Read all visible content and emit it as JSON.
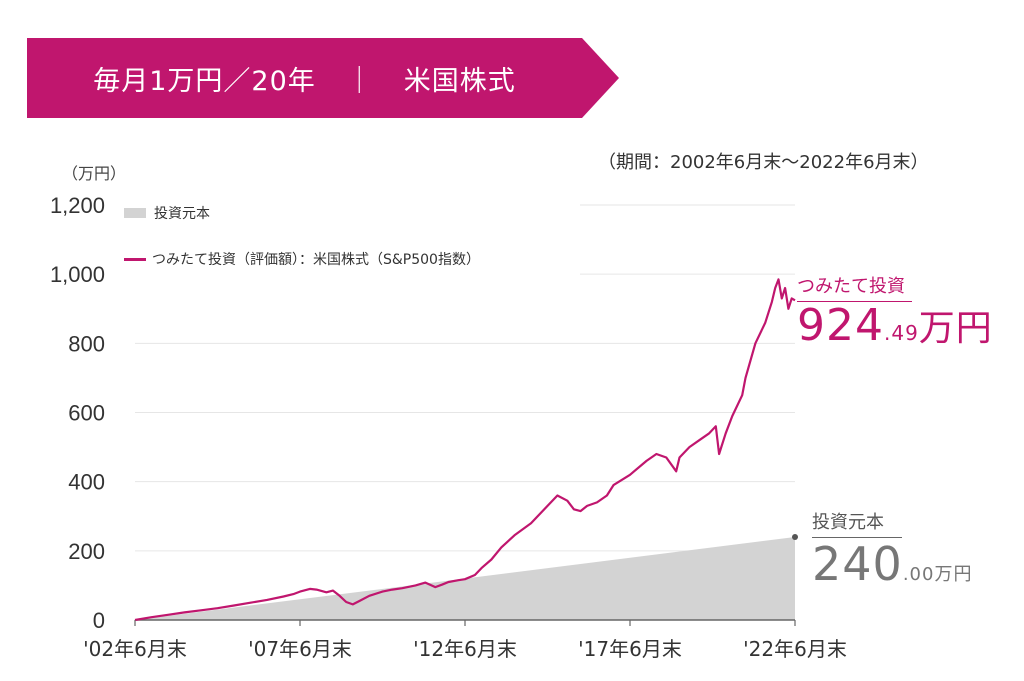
{
  "banner": {
    "left": "毎月1万円／20年",
    "separator": "｜",
    "right": "米国株式",
    "color": "#c0166e"
  },
  "period": "（期間：2002年6月末～2022年6月末）",
  "unit": "（万円）",
  "legend": {
    "principal": "投資元本",
    "tsumitate": "つみたて投資（評価額）：米国株式（S&P500指数）"
  },
  "annotations": {
    "tsumitate_label": "つみたて投資",
    "tsumitate_int": "924",
    "tsumitate_dec": ".49",
    "tsumitate_unit": "万円",
    "principal_label": "投資元本",
    "principal_int": "240",
    "principal_dec": ".00",
    "principal_unit": "万円"
  },
  "chart_data": {
    "type": "area",
    "ylim": [
      0,
      1200
    ],
    "y_ticks": [
      "0",
      "200",
      "400",
      "600",
      "800",
      "1,000",
      "1,200"
    ],
    "y_tick_values": [
      0,
      200,
      400,
      600,
      800,
      1000,
      1200
    ],
    "xlim": [
      2002.5,
      2022.5
    ],
    "x_ticks": [
      "'02年6月末",
      "'07年6月末",
      "'12年6月末",
      "'17年6月末",
      "'22年6月末"
    ],
    "x_tick_values": [
      2002.5,
      2007.5,
      2012.5,
      2017.5,
      2022.5
    ],
    "series": [
      {
        "name": "投資元本",
        "color": "#d3d3d3",
        "x": [
          2002.5,
          2022.5
        ],
        "y": [
          0,
          240
        ]
      },
      {
        "name": "つみたて投資（評価額）：米国株式（S&P500指数）",
        "color": "#c0166e",
        "x": [
          2002.5,
          2003.0,
          2003.5,
          2004.0,
          2004.5,
          2005.0,
          2005.5,
          2006.0,
          2006.5,
          2007.0,
          2007.3,
          2007.5,
          2007.8,
          2008.0,
          2008.3,
          2008.5,
          2008.7,
          2008.9,
          2009.1,
          2009.3,
          2009.6,
          2010.0,
          2010.3,
          2010.6,
          2011.0,
          2011.3,
          2011.6,
          2011.8,
          2012.0,
          2012.3,
          2012.5,
          2012.8,
          2013.0,
          2013.3,
          2013.6,
          2014.0,
          2014.5,
          2015.0,
          2015.3,
          2015.6,
          2015.8,
          2016.0,
          2016.2,
          2016.5,
          2016.8,
          2017.0,
          2017.5,
          2018.0,
          2018.3,
          2018.6,
          2018.9,
          2019.0,
          2019.3,
          2019.6,
          2019.9,
          2020.1,
          2020.2,
          2020.4,
          2020.6,
          2020.9,
          2021.0,
          2021.3,
          2021.6,
          2021.8,
          2021.9,
          2022.0,
          2022.1,
          2022.2,
          2022.3,
          2022.4,
          2022.5
        ],
        "y": [
          0,
          8,
          15,
          22,
          28,
          34,
          42,
          50,
          58,
          68,
          75,
          82,
          90,
          88,
          80,
          85,
          70,
          52,
          45,
          55,
          70,
          82,
          88,
          92,
          100,
          108,
          95,
          102,
          110,
          115,
          118,
          130,
          150,
          175,
          210,
          245,
          280,
          330,
          360,
          345,
          320,
          315,
          330,
          340,
          360,
          390,
          420,
          460,
          480,
          470,
          430,
          470,
          500,
          520,
          540,
          560,
          480,
          540,
          590,
          650,
          700,
          800,
          860,
          920,
          960,
          985,
          930,
          960,
          900,
          930,
          924.49
        ]
      }
    ]
  }
}
